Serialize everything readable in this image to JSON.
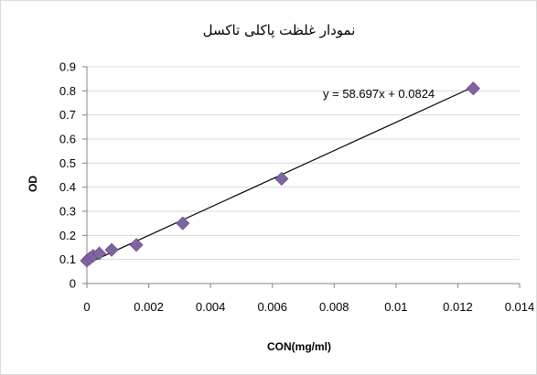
{
  "chart_data": {
    "type": "scatter",
    "title": "نمودار غلظت پاکلی تاکسل",
    "xlabel": "CON(mg/ml)",
    "ylabel": "OD",
    "xlim": [
      0,
      0.014
    ],
    "ylim": [
      0,
      0.9
    ],
    "x_ticks": [
      "0",
      "0.002",
      "0.004",
      "0.006",
      "0.008",
      "0.01",
      "0.012",
      "0.014"
    ],
    "y_ticks": [
      "0",
      "0.1",
      "0.2",
      "0.3",
      "0.4",
      "0.5",
      "0.6",
      "0.7",
      "0.8",
      "0.9"
    ],
    "grid": "horizontal",
    "marker_color": "#8064a2",
    "series": [
      {
        "points": [
          {
            "x": 0.0,
            "y": 0.095
          },
          {
            "x": 0.0001,
            "y": 0.105
          },
          {
            "x": 0.0002,
            "y": 0.115
          },
          {
            "x": 0.0004,
            "y": 0.125
          },
          {
            "x": 0.0008,
            "y": 0.14
          },
          {
            "x": 0.0016,
            "y": 0.16
          },
          {
            "x": 0.0031,
            "y": 0.25
          },
          {
            "x": 0.0063,
            "y": 0.435
          },
          {
            "x": 0.0125,
            "y": 0.81
          }
        ]
      }
    ],
    "trendline": {
      "slope": 58.697,
      "intercept": 0.0824,
      "label": "y = 58.697x + 0.0824",
      "x_range": [
        0,
        0.0125
      ]
    }
  }
}
